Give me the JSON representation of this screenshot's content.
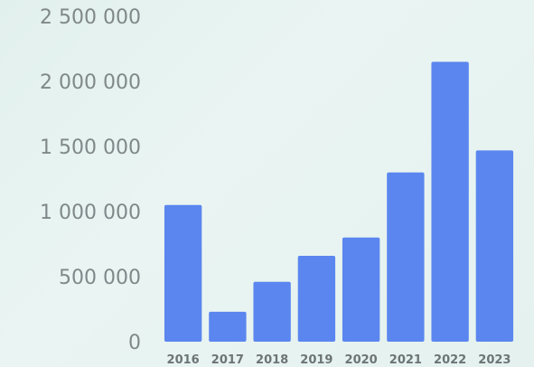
{
  "chart_data": {
    "type": "bar",
    "categories": [
      "2016",
      "2017",
      "2018",
      "2019",
      "2020",
      "2021",
      "2022",
      "2023"
    ],
    "values": [
      1050000,
      230000,
      460000,
      660000,
      800000,
      1300000,
      2150000,
      1470000
    ],
    "ylim": [
      0,
      2500000
    ],
    "yticks": [
      0,
      500000,
      1000000,
      1500000,
      2000000,
      2500000
    ],
    "ytick_labels": [
      "0",
      "500 000",
      "1 000 000",
      "1 500 000",
      "2 000 000",
      "2 500 000"
    ],
    "bar_color": "#5b86ef",
    "grid": false,
    "title": "",
    "xlabel": "",
    "ylabel": ""
  }
}
